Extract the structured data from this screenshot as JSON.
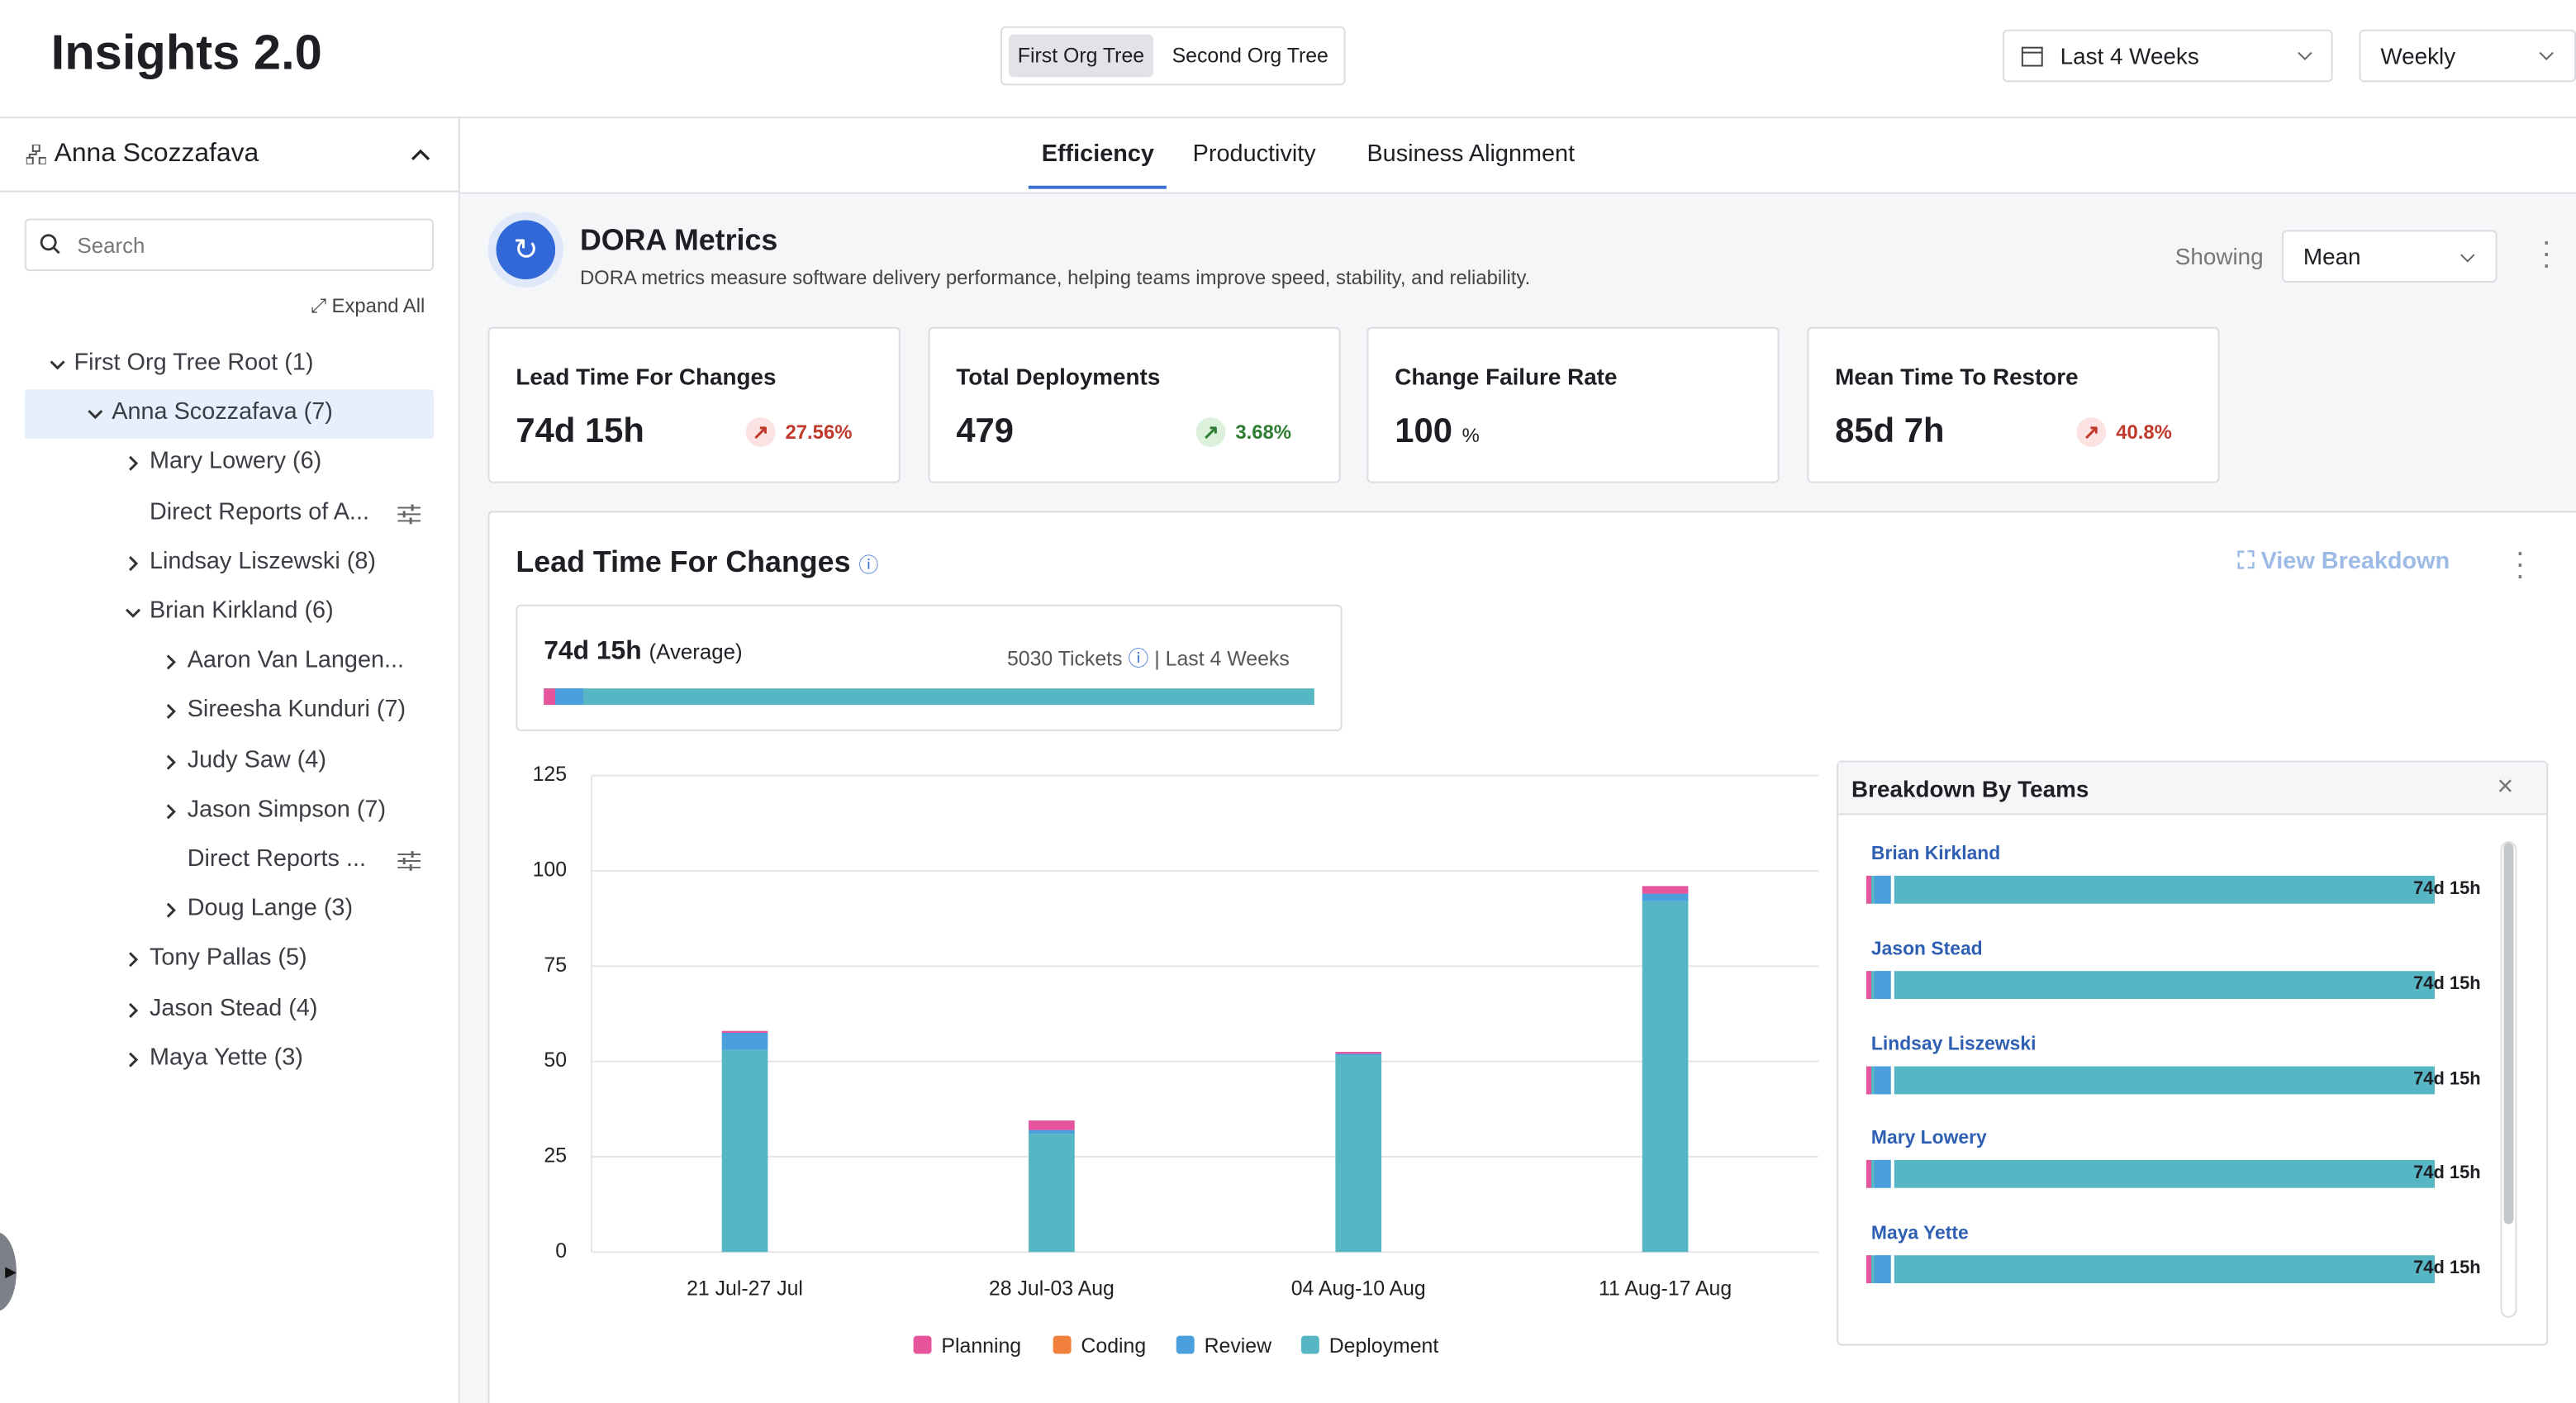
{
  "header": {
    "title": "Insights 2.0",
    "org_trees": [
      "First Org Tree",
      "Second Org Tree"
    ],
    "date_range": "Last 4 Weeks",
    "interval": "Weekly"
  },
  "sidebar": {
    "user": "Anna Scozzafava",
    "search_placeholder": "Search",
    "expand_all": "Expand All",
    "tree": [
      "First Org Tree Root (1)",
      "Anna Scozzafava (7)",
      "Mary Lowery (6)",
      "Direct Reports of A...",
      "Lindsay Liszewski (8)",
      "Brian Kirkland (6)",
      "Aaron Van Langen...",
      "Sireesha Kunduri (7)",
      "Judy Saw (4)",
      "Jason Simpson (7)",
      "Direct Reports ...",
      "Doug Lange (3)",
      "Tony Pallas (5)",
      "Jason Stead (4)",
      "Maya Yette (3)"
    ]
  },
  "tabs": [
    "Efficiency",
    "Productivity",
    "Business Alignment"
  ],
  "dora": {
    "title": "DORA Metrics",
    "description": "DORA metrics measure software delivery performance, helping teams improve speed, stability, and reliability.",
    "showing_label": "Showing",
    "showing_value": "Mean"
  },
  "cards": [
    {
      "title": "Lead Time For Changes",
      "value": "74d 15h",
      "change": "27.56%"
    },
    {
      "title": "Total Deployments",
      "value": 479,
      "change": "3.68%"
    },
    {
      "title": "Change Failure Rate",
      "value": 100,
      "unit": "%"
    },
    {
      "title": "Mean Time To Restore",
      "value": "85d 7h",
      "change": "40.8%"
    }
  ],
  "panel": {
    "title": "Lead Time For Changes",
    "view_breakdown": "View Breakdown",
    "summary": {
      "value": "74d 15h",
      "qualifier": "(Average)",
      "tickets": "5030 Tickets",
      "period": "| Last 4 Weeks"
    }
  },
  "chart_data": {
    "type": "stacked_bar",
    "categories": [
      "21 Jul-27 Jul",
      "28 Jul-03 Aug",
      "04 Aug-10 Aug",
      "11 Aug-17 Aug"
    ],
    "series": [
      {
        "name": "Planning",
        "color": "#e6559b",
        "values": [
          0.5,
          2.5,
          0.5,
          2
        ]
      },
      {
        "name": "Coding",
        "color": "#f0803c",
        "values": [
          0,
          0,
          0,
          0
        ]
      },
      {
        "name": "Review",
        "color": "#4a9fdc",
        "values": [
          4.5,
          1,
          0.5,
          2
        ]
      },
      {
        "name": "Deployment",
        "color": "#56b6c4",
        "values": [
          53,
          31,
          51.5,
          92
        ]
      }
    ],
    "ylim": [
      0,
      125
    ],
    "yticks": [
      0,
      25,
      50,
      75,
      100,
      125
    ],
    "grid": true
  },
  "breakdown": {
    "title": "Breakdown By Teams",
    "teams": [
      {
        "name": "Brian Kirkland",
        "value": "74d 15h"
      },
      {
        "name": "Jason Stead",
        "value": "74d 15h"
      },
      {
        "name": "Lindsay Liszewski",
        "value": "74d 15h"
      },
      {
        "name": "Mary Lowery",
        "value": "74d 15h"
      },
      {
        "name": "Maya Yette",
        "value": "74d 15h"
      }
    ]
  }
}
